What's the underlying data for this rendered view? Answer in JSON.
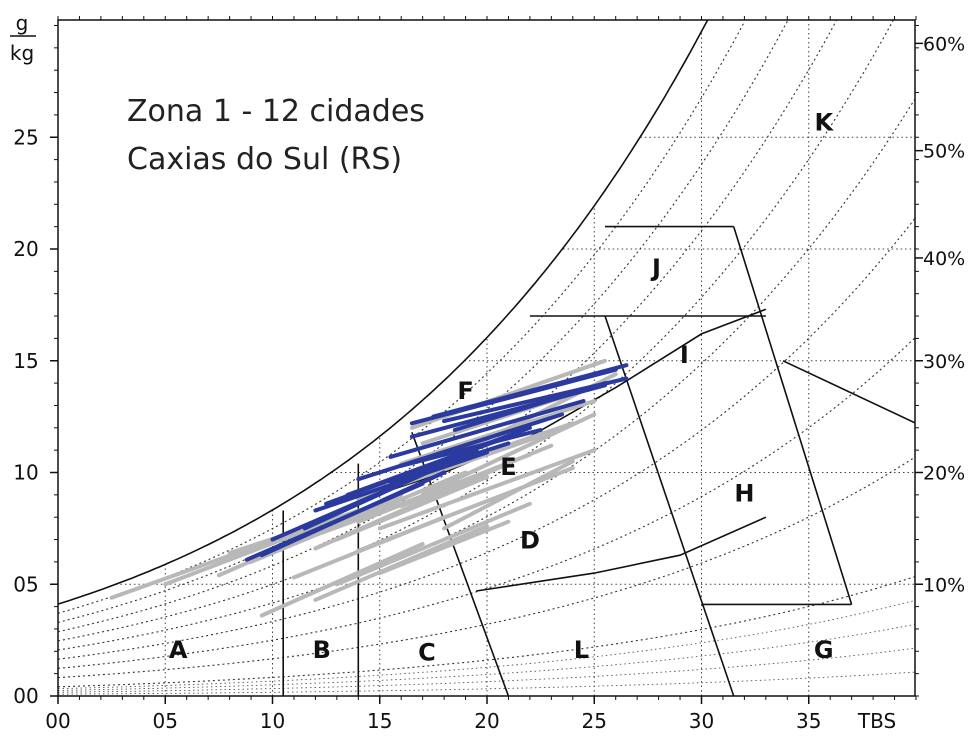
{
  "chart_data": {
    "type": "line",
    "title_lines": [
      "Zona 1 - 12 cidades",
      "Caxias do Sul (RS)"
    ],
    "y_unit_numerator": "g",
    "y_unit_denominator": "kg",
    "xlabel": "TBS",
    "xlim": [
      0,
      40
    ],
    "ylim": [
      0,
      30
    ],
    "x_ticks": [
      {
        "value": 0,
        "label": "00"
      },
      {
        "value": 5,
        "label": "05"
      },
      {
        "value": 10,
        "label": "10"
      },
      {
        "value": 15,
        "label": "15"
      },
      {
        "value": 20,
        "label": "20"
      },
      {
        "value": 25,
        "label": "25"
      },
      {
        "value": 30,
        "label": "30"
      },
      {
        "value": 35,
        "label": "35"
      }
    ],
    "y_ticks": [
      {
        "value": 0,
        "label": "00"
      },
      {
        "value": 5,
        "label": "05"
      },
      {
        "value": 10,
        "label": "10"
      },
      {
        "value": 15,
        "label": "15"
      },
      {
        "value": 20,
        "label": "20"
      },
      {
        "value": 25,
        "label": "25"
      }
    ],
    "rh_labels": [
      {
        "label": "10%",
        "y": 5
      },
      {
        "label": "20%",
        "y": 10
      },
      {
        "label": "30%",
        "y": 15
      },
      {
        "label": "40%",
        "y": 19.6
      },
      {
        "label": "50%",
        "y": 24.4
      },
      {
        "label": "60%",
        "y": 29.2
      }
    ],
    "zones": [
      {
        "label": "A",
        "x": 5.6,
        "y": 2.1
      },
      {
        "label": "B",
        "x": 12.3,
        "y": 2.1
      },
      {
        "label": "C",
        "x": 17.2,
        "y": 2.0
      },
      {
        "label": "D",
        "x": 22.0,
        "y": 7.0
      },
      {
        "label": "E",
        "x": 21.0,
        "y": 10.3
      },
      {
        "label": "F",
        "x": 19.0,
        "y": 13.7
      },
      {
        "label": "G",
        "x": 35.7,
        "y": 2.1
      },
      {
        "label": "H",
        "x": 32.0,
        "y": 9.1
      },
      {
        "label": "I",
        "x": 29.2,
        "y": 15.3
      },
      {
        "label": "J",
        "x": 27.9,
        "y": 19.2
      },
      {
        "label": "K",
        "x": 35.7,
        "y": 25.7
      },
      {
        "label": "L",
        "x": 24.4,
        "y": 2.1
      }
    ],
    "series": [
      {
        "color": "#b8b8b8",
        "segments": [
          [
            [
              2.5,
              4.4
            ],
            [
              11,
              7.3
            ]
          ],
          [
            [
              5,
              5.0
            ],
            [
              14,
              8.3
            ]
          ],
          [
            [
              7.5,
              5.4
            ],
            [
              16,
              9.0
            ]
          ],
          [
            [
              9,
              6.0
            ],
            [
              19,
              10.0
            ]
          ],
          [
            [
              12,
              6.6
            ],
            [
              21,
              10.4
            ]
          ],
          [
            [
              14,
              7.8
            ],
            [
              22,
              10.8
            ]
          ],
          [
            [
              14,
              8.8
            ],
            [
              23,
              11.8
            ]
          ],
          [
            [
              16,
              9.6
            ],
            [
              24,
              12.2
            ]
          ],
          [
            [
              16,
              10.4
            ],
            [
              25,
              13.2
            ]
          ],
          [
            [
              17,
              11.3
            ],
            [
              25.5,
              14.0
            ]
          ],
          [
            [
              16.5,
              12.0
            ],
            [
              25.5,
              15.0
            ]
          ],
          [
            [
              16,
              8.5
            ],
            [
              23,
              11.2
            ]
          ],
          [
            [
              12,
              4.3
            ],
            [
              20,
              7.6
            ]
          ],
          [
            [
              9.5,
              3.6
            ],
            [
              17,
              6.8
            ]
          ],
          [
            [
              13,
              5.0
            ],
            [
              22,
              8.6
            ]
          ],
          [
            [
              14,
              6.5
            ],
            [
              24,
              10.2
            ]
          ],
          [
            [
              15,
              7.5
            ],
            [
              25,
              11.0
            ]
          ],
          [
            [
              11,
              5.3
            ],
            [
              18,
              8.0
            ]
          ],
          [
            [
              18,
              7.5
            ],
            [
              24,
              10.5
            ]
          ],
          [
            [
              17,
              9.0
            ],
            [
              25,
              12.6
            ]
          ],
          [
            [
              19,
              11.0
            ],
            [
              26,
              14.4
            ]
          ],
          [
            [
              10,
              6.5
            ],
            [
              18,
              9.3
            ]
          ],
          [
            [
              8,
              6.4
            ],
            [
              15,
              8.6
            ]
          ],
          [
            [
              13,
              7.0
            ],
            [
              20,
              9.8
            ]
          ],
          [
            [
              15,
              5.5
            ],
            [
              21,
              7.8
            ]
          ],
          [
            [
              12,
              8.3
            ],
            [
              19,
              10.6
            ]
          ]
        ]
      },
      {
        "color": "#2a3a9e",
        "segments": [
          [
            [
              8.8,
              6.1
            ],
            [
              17,
              9.5
            ]
          ],
          [
            [
              9.5,
              6.3
            ],
            [
              18,
              10.0
            ]
          ],
          [
            [
              11.5,
              7.5
            ],
            [
              19.5,
              11.0
            ]
          ],
          [
            [
              12,
              8.3
            ],
            [
              20,
              10.9
            ]
          ],
          [
            [
              12.5,
              8.6
            ],
            [
              21,
              11.6
            ]
          ],
          [
            [
              13.5,
              9.0
            ],
            [
              22,
              12.0
            ]
          ],
          [
            [
              14,
              9.7
            ],
            [
              23.5,
              12.6
            ]
          ],
          [
            [
              15.5,
              10.7
            ],
            [
              24.5,
              13.2
            ]
          ],
          [
            [
              16.5,
              11.6
            ],
            [
              25.5,
              13.9
            ]
          ],
          [
            [
              16.5,
              12.2
            ],
            [
              26,
              14.6
            ]
          ],
          [
            [
              17.5,
              12.5
            ],
            [
              26.5,
              14.8
            ]
          ],
          [
            [
              18,
              12.3
            ],
            [
              26.5,
              14.2
            ]
          ],
          [
            [
              10,
              7.0
            ],
            [
              16,
              9.5
            ]
          ],
          [
            [
              15.5,
              9.6
            ],
            [
              21,
              11.3
            ]
          ],
          [
            [
              16,
              10.3
            ],
            [
              22.5,
              11.9
            ]
          ],
          [
            [
              18.5,
              11.9
            ],
            [
              25.5,
              14.0
            ]
          ]
        ]
      }
    ],
    "zone_lines_note": "Bioclimatic zones A-L drawn on a psychrometric chart (dry-bulb temperature vs humidity ratio)"
  }
}
